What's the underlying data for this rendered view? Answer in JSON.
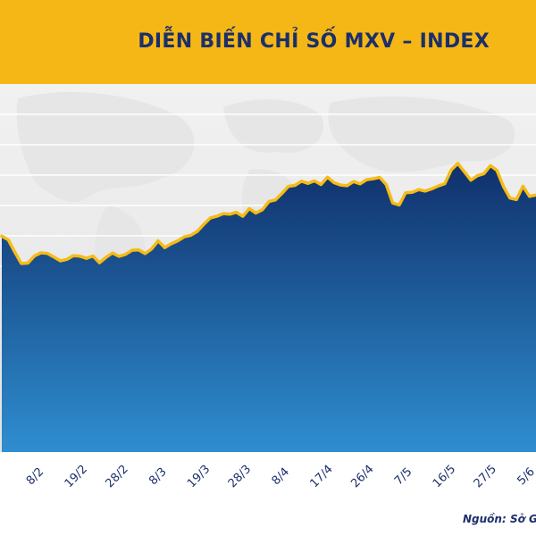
{
  "title": "DIỄN BIẾN CHỈ SỐ MXV – INDEX",
  "source": "Nguồn: Sở G",
  "colors": {
    "banner": "#f5b715",
    "title": "#1b2f6b",
    "line": "#f6bb16",
    "area_top": "#10306b",
    "area_bottom": "#2e8ed0",
    "tick_label": "#1b2f6b"
  },
  "chart_data": {
    "type": "area",
    "title": "DIỄN BIẾN CHỈ SỐ MXV – INDEX",
    "xlabel": "",
    "ylabel": "",
    "grid": true,
    "legend": "none",
    "x_tick_labels": [
      "8/2",
      "19/2",
      "28/2",
      "8/3",
      "19/3",
      "28/3",
      "8/4",
      "17/4",
      "26/4",
      "7/5",
      "16/5",
      "27/5",
      "5/6"
    ],
    "ylim": [
      0,
      100
    ],
    "series": [
      {
        "values": [
          56.5,
          54.3,
          46.9,
          40.1,
          40.4,
          44.6,
          46.5,
          46.2,
          44.0,
          41.7,
          42.6,
          44.8,
          44.5,
          43.2,
          44.6,
          40.6,
          43.8,
          46.4,
          44.4,
          45.6,
          48.1,
          48.3,
          46.1,
          48.8,
          53.7,
          49.6,
          51.9,
          53.7,
          56.1,
          57.0,
          59.3,
          63.6,
          67.4,
          68.4,
          70.0,
          69.6,
          70.8,
          68.4,
          73.0,
          70.3,
          72.3,
          77.2,
          78.2,
          82.1,
          86.3,
          86.9,
          89.4,
          88.1,
          89.6,
          87.4,
          91.8,
          88.5,
          87.1,
          86.7,
          89.2,
          87.8,
          90.3,
          90.8,
          91.7,
          87.4,
          76.3,
          75.2,
          82.5,
          82.8,
          84.4,
          83.5,
          84.8,
          86.5,
          87.9,
          96.2,
          100.0,
          95.0,
          90.0,
          92.7,
          93.9,
          98.7,
          95.9,
          86.3,
          79.3,
          78.4,
          86.4,
          80.3,
          81.1
        ]
      }
    ]
  }
}
